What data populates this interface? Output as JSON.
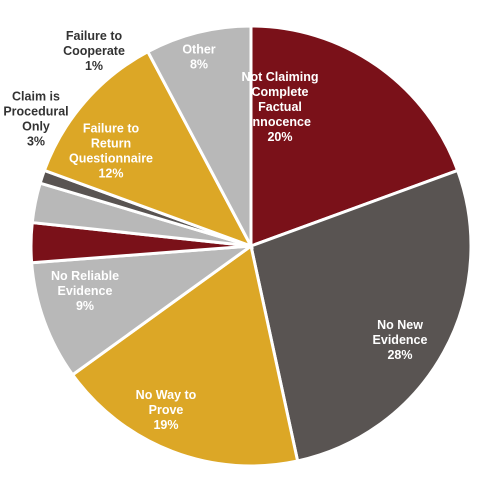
{
  "chart_data": {
    "type": "pie",
    "start_angle_deg": 0,
    "direction": "clockwise",
    "slices": [
      {
        "lines": [
          "Not Claiming",
          "Complete",
          "Factual",
          "Innocence",
          "20%"
        ],
        "value": 20,
        "color": "#7a1119",
        "text_color": "#ffffff"
      },
      {
        "lines": [
          "No New",
          "Evidence",
          "28%"
        ],
        "value": 28,
        "color": "#595452",
        "text_color": "#ffffff"
      },
      {
        "lines": [
          "No Way to",
          "Prove",
          "19%"
        ],
        "value": 19,
        "color": "#dca726",
        "text_color": "#ffffff"
      },
      {
        "lines": [
          "No Reliable",
          "Evidence",
          "9%"
        ],
        "value": 9,
        "color": "#b8b8b8",
        "text_color": "#ffffff"
      },
      {
        "lines": [],
        "value": 3,
        "color": "#7a1119",
        "text_color": "#ffffff"
      },
      {
        "lines": [
          "Claim is",
          "Procedural",
          "Only",
          "3%"
        ],
        "value": 3,
        "color": "#b8b8b8",
        "text_color": "#333333"
      },
      {
        "lines": [
          "Failure to",
          "Cooperate",
          "1%"
        ],
        "value": 1,
        "color": "#595452",
        "text_color": "#333333"
      },
      {
        "lines": [
          "Failure to",
          "Return",
          "Questionnaire",
          "12%"
        ],
        "value": 12,
        "color": "#dca726",
        "text_color": "#ffffff"
      },
      {
        "lines": [
          "Other",
          "8%"
        ],
        "value": 8,
        "color": "#b8b8b8",
        "text_color": "#ffffff"
      }
    ]
  }
}
